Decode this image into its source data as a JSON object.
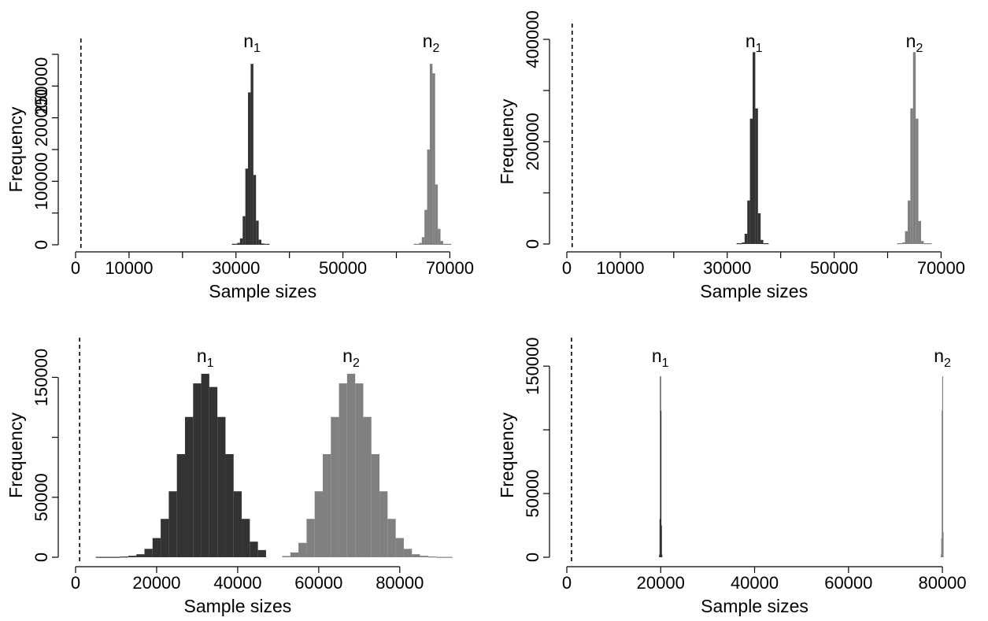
{
  "chart_data": [
    {
      "type": "bar",
      "xlabel": "Sample sizes",
      "ylabel": "Frequency",
      "xlim": [
        0,
        72000
      ],
      "ylim": [
        0,
        300000
      ],
      "x_ticks": [
        0,
        10000,
        20000,
        30000,
        40000,
        50000,
        60000,
        70000
      ],
      "x_tick_labels": [
        "0",
        "10000",
        "",
        "30000",
        "",
        "50000",
        "",
        "70000"
      ],
      "y_ticks": [
        0,
        50000,
        100000,
        150000,
        200000,
        250000,
        300000
      ],
      "y_tick_labels": [
        "0",
        "",
        "100000",
        "",
        "200000",
        "250000",
        ""
      ],
      "reference_line_x": 1000,
      "bin_width": 500,
      "series": [
        {
          "label_base": "n",
          "label_sub": "1",
          "color": "#333333",
          "bins": [
            {
              "x": 29500,
              "y": 1500
            },
            {
              "x": 30000,
              "y": 1500
            },
            {
              "x": 30500,
              "y": 3000
            },
            {
              "x": 31000,
              "y": 10000
            },
            {
              "x": 31500,
              "y": 45000
            },
            {
              "x": 32000,
              "y": 120000
            },
            {
              "x": 32500,
              "y": 240000
            },
            {
              "x": 33000,
              "y": 285000
            },
            {
              "x": 33500,
              "y": 110000
            },
            {
              "x": 34000,
              "y": 38000
            },
            {
              "x": 34500,
              "y": 8000
            },
            {
              "x": 35000,
              "y": 2000
            },
            {
              "x": 35500,
              "y": 1500
            },
            {
              "x": 36000,
              "y": 1500
            }
          ]
        },
        {
          "label_base": "n",
          "label_sub": "2",
          "color": "#808080",
          "bins": [
            {
              "x": 63500,
              "y": 1500
            },
            {
              "x": 64000,
              "y": 1500
            },
            {
              "x": 64500,
              "y": 3000
            },
            {
              "x": 65000,
              "y": 12000
            },
            {
              "x": 65500,
              "y": 55000
            },
            {
              "x": 66000,
              "y": 150000
            },
            {
              "x": 66500,
              "y": 285000
            },
            {
              "x": 67000,
              "y": 270000
            },
            {
              "x": 67500,
              "y": 95000
            },
            {
              "x": 68000,
              "y": 25000
            },
            {
              "x": 68500,
              "y": 6000
            },
            {
              "x": 69000,
              "y": 1500
            },
            {
              "x": 69500,
              "y": 1500
            },
            {
              "x": 70000,
              "y": 1500
            }
          ]
        }
      ]
    },
    {
      "type": "bar",
      "xlabel": "Sample sizes",
      "ylabel": "Frequency",
      "xlim": [
        0,
        72000
      ],
      "ylim": [
        0,
        400000
      ],
      "x_ticks": [
        0,
        10000,
        20000,
        30000,
        40000,
        50000,
        60000,
        70000
      ],
      "x_tick_labels": [
        "0",
        "10000",
        "",
        "30000",
        "",
        "50000",
        "",
        "70000"
      ],
      "y_ticks": [
        0,
        100000,
        200000,
        300000,
        400000
      ],
      "y_tick_labels": [
        "0",
        "",
        "200000",
        "",
        "400000"
      ],
      "reference_line_x": 1000,
      "bin_width": 500,
      "series": [
        {
          "label_base": "n",
          "label_sub": "1",
          "color": "#333333",
          "bins": [
            {
              "x": 32000,
              "y": 1500
            },
            {
              "x": 32500,
              "y": 1500
            },
            {
              "x": 33000,
              "y": 3000
            },
            {
              "x": 33500,
              "y": 20000
            },
            {
              "x": 34000,
              "y": 85000
            },
            {
              "x": 34500,
              "y": 245000
            },
            {
              "x": 35000,
              "y": 375000
            },
            {
              "x": 35500,
              "y": 265000
            },
            {
              "x": 36000,
              "y": 60000
            },
            {
              "x": 36500,
              "y": 8000
            },
            {
              "x": 37000,
              "y": 1500
            },
            {
              "x": 37500,
              "y": 1500
            }
          ]
        },
        {
          "label_base": "n",
          "label_sub": "2",
          "color": "#808080",
          "bins": [
            {
              "x": 62000,
              "y": 1500
            },
            {
              "x": 62500,
              "y": 1500
            },
            {
              "x": 63000,
              "y": 3000
            },
            {
              "x": 63500,
              "y": 25000
            },
            {
              "x": 64000,
              "y": 85000
            },
            {
              "x": 64500,
              "y": 265000
            },
            {
              "x": 65000,
              "y": 375000
            },
            {
              "x": 65500,
              "y": 245000
            },
            {
              "x": 66000,
              "y": 45000
            },
            {
              "x": 66500,
              "y": 6000
            },
            {
              "x": 67000,
              "y": 1500
            },
            {
              "x": 67500,
              "y": 1500
            },
            {
              "x": 68000,
              "y": 1500
            }
          ]
        }
      ]
    },
    {
      "type": "bar",
      "xlabel": "Sample sizes",
      "ylabel": "Frequency",
      "xlim": [
        0,
        95000
      ],
      "ylim": [
        0,
        170000
      ],
      "x_ticks": [
        0,
        20000,
        40000,
        60000,
        80000
      ],
      "x_tick_labels": [
        "0",
        "20000",
        "40000",
        "60000",
        "80000"
      ],
      "y_ticks": [
        0,
        50000,
        100000,
        150000
      ],
      "y_tick_labels": [
        "0",
        "50000",
        "",
        "150000"
      ],
      "reference_line_x": 1000,
      "bin_width": 2000,
      "series": [
        {
          "label_base": "n",
          "label_sub": "1",
          "color": "#333333",
          "bins": [
            {
              "x": 6000,
              "y": 300
            },
            {
              "x": 8000,
              "y": 300
            },
            {
              "x": 10000,
              "y": 300
            },
            {
              "x": 12000,
              "y": 600
            },
            {
              "x": 14000,
              "y": 1200
            },
            {
              "x": 16000,
              "y": 2500
            },
            {
              "x": 18000,
              "y": 7000
            },
            {
              "x": 20000,
              "y": 16000
            },
            {
              "x": 22000,
              "y": 32000
            },
            {
              "x": 24000,
              "y": 55000
            },
            {
              "x": 26000,
              "y": 86000
            },
            {
              "x": 28000,
              "y": 117000
            },
            {
              "x": 30000,
              "y": 145000
            },
            {
              "x": 32000,
              "y": 153000
            },
            {
              "x": 34000,
              "y": 142000
            },
            {
              "x": 36000,
              "y": 117000
            },
            {
              "x": 38000,
              "y": 86000
            },
            {
              "x": 40000,
              "y": 55000
            },
            {
              "x": 42000,
              "y": 32000
            },
            {
              "x": 44000,
              "y": 13000
            },
            {
              "x": 46000,
              "y": 6000
            }
          ]
        },
        {
          "label_base": "n",
          "label_sub": "2",
          "color": "#808080",
          "bins": [
            {
              "x": 52000,
              "y": 1000
            },
            {
              "x": 54000,
              "y": 4000
            },
            {
              "x": 56000,
              "y": 12000
            },
            {
              "x": 58000,
              "y": 32000
            },
            {
              "x": 60000,
              "y": 55000
            },
            {
              "x": 62000,
              "y": 86000
            },
            {
              "x": 64000,
              "y": 117000
            },
            {
              "x": 66000,
              "y": 145000
            },
            {
              "x": 68000,
              "y": 153000
            },
            {
              "x": 70000,
              "y": 145000
            },
            {
              "x": 72000,
              "y": 117000
            },
            {
              "x": 74000,
              "y": 86000
            },
            {
              "x": 76000,
              "y": 55000
            },
            {
              "x": 78000,
              "y": 32000
            },
            {
              "x": 80000,
              "y": 16000
            },
            {
              "x": 82000,
              "y": 7000
            },
            {
              "x": 84000,
              "y": 2500
            },
            {
              "x": 86000,
              "y": 1200
            },
            {
              "x": 88000,
              "y": 600
            },
            {
              "x": 90000,
              "y": 300
            },
            {
              "x": 92000,
              "y": 300
            }
          ]
        }
      ]
    },
    {
      "type": "bar",
      "xlabel": "Sample sizes",
      "ylabel": "Frequency",
      "xlim": [
        0,
        82000
      ],
      "ylim": [
        0,
        160000
      ],
      "x_ticks": [
        0,
        20000,
        40000,
        60000,
        80000
      ],
      "x_tick_labels": [
        "0",
        "20000",
        "40000",
        "60000",
        "80000"
      ],
      "y_ticks": [
        0,
        50000,
        100000,
        150000
      ],
      "y_tick_labels": [
        "0",
        "50000",
        "",
        "150000"
      ],
      "reference_line_x": 1000,
      "bin_width": 100,
      "series": [
        {
          "label_base": "n",
          "label_sub": "1",
          "color": "#333333",
          "bins": [
            {
              "x": 19700,
              "y": 2000
            },
            {
              "x": 19800,
              "y": 30000
            },
            {
              "x": 19900,
              "y": 142000
            },
            {
              "x": 20000,
              "y": 115000
            },
            {
              "x": 20100,
              "y": 25000
            },
            {
              "x": 20200,
              "y": 2000
            }
          ]
        },
        {
          "label_base": "n",
          "label_sub": "2",
          "color": "#808080",
          "bins": [
            {
              "x": 79700,
              "y": 2000
            },
            {
              "x": 79800,
              "y": 15000
            },
            {
              "x": 79900,
              "y": 115000
            },
            {
              "x": 80000,
              "y": 142000
            },
            {
              "x": 80100,
              "y": 20000
            }
          ]
        }
      ]
    }
  ]
}
